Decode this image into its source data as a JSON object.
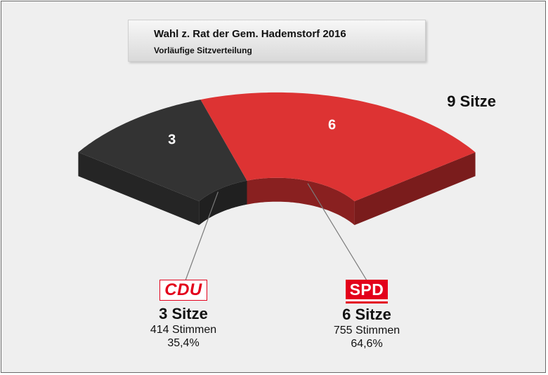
{
  "title": "Wahl z. Rat der Gem. Hademstorf 2016",
  "subtitle": "Vorläufige Sitzverteilung",
  "total_label": "9 Sitze",
  "chart_data": {
    "type": "pie",
    "title": "Wahl z. Rat der Gem. Hademstorf 2016",
    "subtitle": "Vorläufige Sitzverteilung",
    "total_seats": 9,
    "categories": [
      "CDU",
      "SPD"
    ],
    "values": [
      3,
      6
    ],
    "data_labels": [
      "3",
      "6"
    ],
    "colors": [
      "#333333",
      "#dd3333"
    ],
    "shape": "3D half-ring (parliament seat arc)",
    "legend": "below"
  },
  "parties": [
    {
      "logo": "CDU",
      "seats": 3,
      "seats_label": "3 Sitze",
      "votes_label": "414 Stimmen",
      "percent_label": "35,4%"
    },
    {
      "logo": "SPD",
      "seats": 6,
      "seats_label": "6 Sitze",
      "votes_label": "755 Stimmen",
      "percent_label": "64,6%"
    }
  ]
}
